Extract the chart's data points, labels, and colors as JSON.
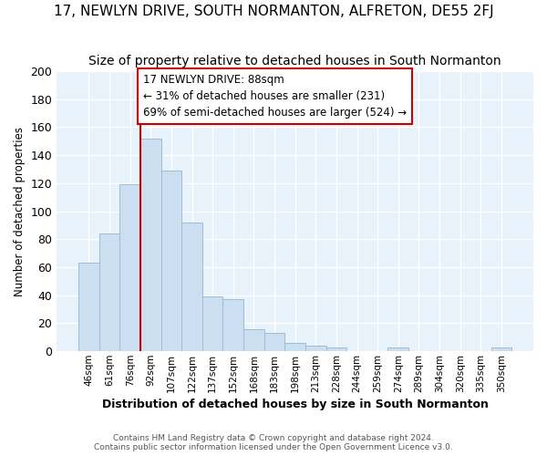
{
  "title": "17, NEWLYN DRIVE, SOUTH NORMANTON, ALFRETON, DE55 2FJ",
  "subtitle": "Size of property relative to detached houses in South Normanton",
  "xlabel": "Distribution of detached houses by size in South Normanton",
  "ylabel": "Number of detached properties",
  "footnote": "Contains HM Land Registry data © Crown copyright and database right 2024.\nContains public sector information licensed under the Open Government Licence v3.0.",
  "categories": [
    "46sqm",
    "61sqm",
    "76sqm",
    "92sqm",
    "107sqm",
    "122sqm",
    "137sqm",
    "152sqm",
    "168sqm",
    "183sqm",
    "198sqm",
    "213sqm",
    "228sqm",
    "244sqm",
    "259sqm",
    "274sqm",
    "289sqm",
    "304sqm",
    "320sqm",
    "335sqm",
    "350sqm"
  ],
  "values": [
    63,
    84,
    119,
    152,
    129,
    92,
    39,
    37,
    16,
    13,
    6,
    4,
    3,
    0,
    0,
    3,
    0,
    0,
    0,
    0,
    3
  ],
  "bar_color": "#ccdff0",
  "bar_edge_color": "#9bbdd6",
  "property_line_color": "#cc0000",
  "property_line_index": 3,
  "annotation_text": "17 NEWLYN DRIVE: 88sqm\n← 31% of detached houses are smaller (231)\n69% of semi-detached houses are larger (524) →",
  "annotation_box_facecolor": "#ffffff",
  "annotation_box_edgecolor": "#cc0000",
  "ylim": [
    0,
    200
  ],
  "yticks": [
    0,
    20,
    40,
    60,
    80,
    100,
    120,
    140,
    160,
    180,
    200
  ],
  "plot_bg_color": "#e8f2fb",
  "fig_bg_color": "#ffffff",
  "grid_color": "#ffffff",
  "title_fontsize": 11,
  "subtitle_fontsize": 10
}
